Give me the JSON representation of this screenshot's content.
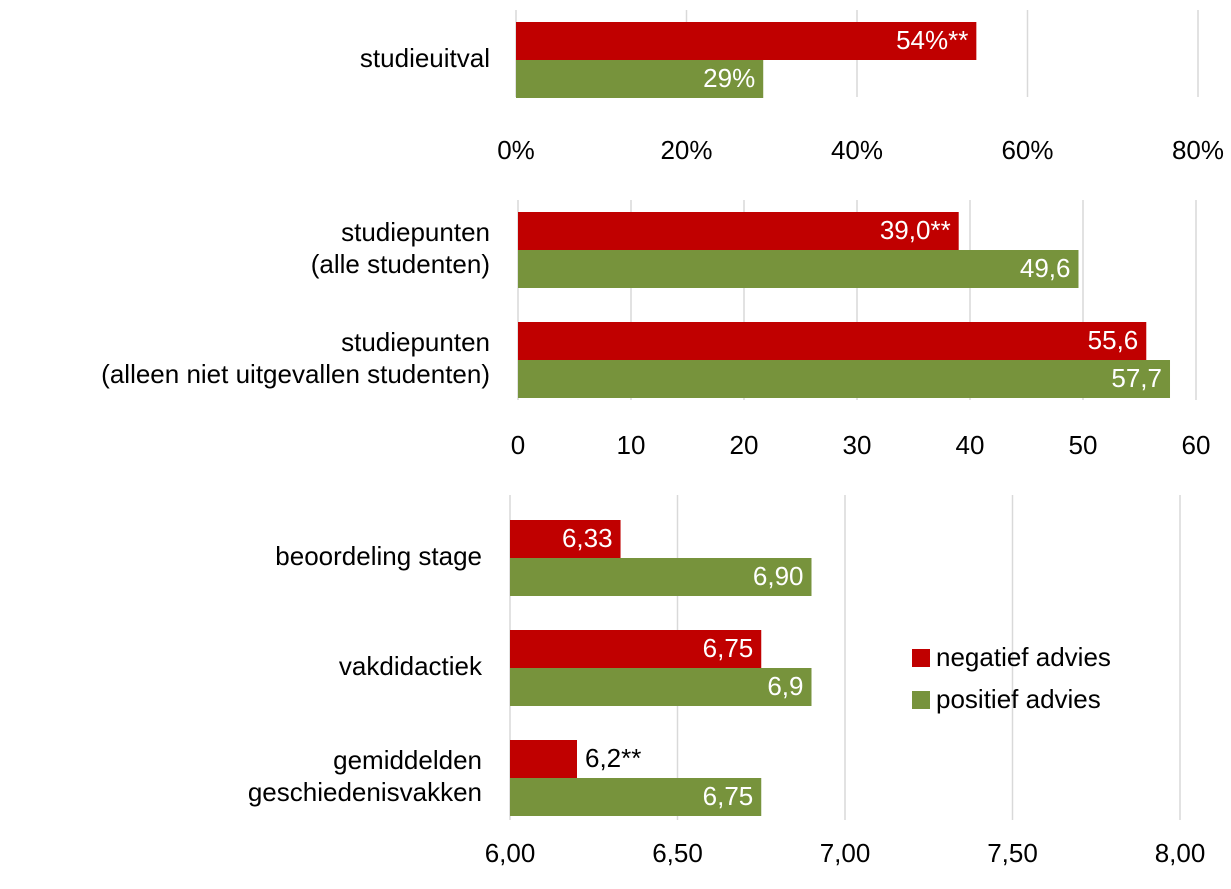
{
  "chart_data": [
    {
      "type": "bar",
      "orientation": "horizontal",
      "categories": [
        [
          "studieuitval"
        ]
      ],
      "series": [
        {
          "color": "#c00000",
          "values": [
            54
          ],
          "value_labels": [
            "54%**"
          ]
        },
        {
          "color": "#77933c",
          "values": [
            29
          ],
          "value_labels": [
            "29%"
          ]
        }
      ],
      "xlim": [
        0,
        80
      ],
      "xticks": [
        {
          "value": 0,
          "label": "0%"
        },
        {
          "value": 20,
          "label": "20%"
        },
        {
          "value": 40,
          "label": "40%"
        },
        {
          "value": 60,
          "label": "60%"
        },
        {
          "value": 80,
          "label": "80%"
        }
      ],
      "grid": true
    },
    {
      "type": "bar",
      "orientation": "horizontal",
      "categories": [
        [
          "studiepunten",
          "(alle studenten)"
        ],
        [
          "studiepunten",
          "(alleen niet uitgevallen studenten)"
        ]
      ],
      "series": [
        {
          "color": "#c00000",
          "values": [
            39.0,
            55.6
          ],
          "value_labels": [
            "39,0**",
            "55,6"
          ]
        },
        {
          "color": "#77933c",
          "values": [
            49.6,
            57.7
          ],
          "value_labels": [
            "49,6",
            "57,7"
          ]
        }
      ],
      "xlim": [
        0,
        60
      ],
      "xticks": [
        0,
        10,
        20,
        30,
        40,
        50,
        60
      ],
      "grid": true
    },
    {
      "type": "bar",
      "orientation": "horizontal",
      "categories": [
        [
          "beoordeling stage"
        ],
        [
          "vakdidactiek"
        ],
        [
          "gemiddelden",
          "geschiedenisvakken"
        ]
      ],
      "series": [
        {
          "name": "negatief advies",
          "color": "#c00000",
          "values": [
            6.33,
            6.75,
            6.2
          ],
          "value_labels": [
            "6,33",
            "6,75",
            "6,2**"
          ]
        },
        {
          "name": "positief advies",
          "color": "#77933c",
          "values": [
            6.9,
            6.9,
            6.75
          ],
          "value_labels": [
            "6,90",
            "6,9",
            "6,75"
          ]
        }
      ],
      "xlim": [
        6,
        8
      ],
      "xticks": [
        {
          "value": 6,
          "label": "6,00"
        },
        {
          "value": 6.5,
          "label": "6,50"
        },
        {
          "value": 7,
          "label": "7,00"
        },
        {
          "value": 7.5,
          "label": "7,50"
        },
        {
          "value": 8,
          "label": "8,00"
        }
      ],
      "grid": true,
      "legend": "right"
    }
  ]
}
